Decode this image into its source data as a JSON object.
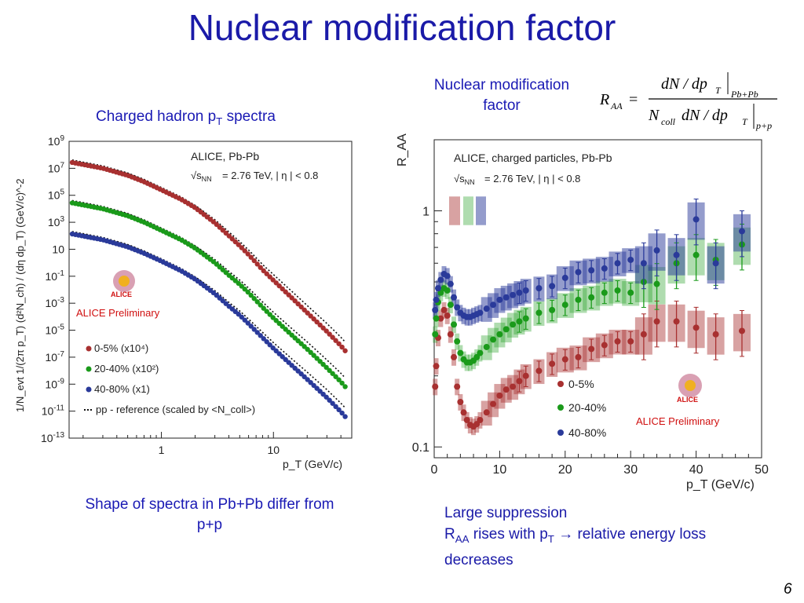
{
  "slide": {
    "title": "Nuclear modification factor",
    "left_heading": "Charged hadron p",
    "left_heading_sub": "T",
    "left_heading_tail": " spectra",
    "right_heading_line1": "Nuclear modification",
    "right_heading_line2": "factor",
    "formula": {
      "lhs": "R",
      "lhs_sub": "AA",
      "numerator": "dN / dp",
      "num_sub": "T",
      "num_eval": "Pb+Pb",
      "den_pre": "N",
      "den_pre_sub": "coll",
      "den_main": " dN / dp",
      "den_sub": "T",
      "den_eval": "p+p"
    },
    "left_caption": "Shape of spectra in Pb+Pb differ from p+p",
    "right_caption": {
      "line1": "Large suppression",
      "line2_a": "R",
      "line2_sub": "AA",
      "line2_b": " rises with p",
      "line2_sub2": "T",
      "line2_arrow": "→",
      "line2_c": " relative energy loss",
      "line3": "decreases"
    },
    "page_number": "6"
  },
  "chart_data": [
    {
      "type": "scatter",
      "x_scale": "log",
      "y_scale": "log",
      "xlim": [
        0.15,
        50
      ],
      "ylim": [
        1e-13,
        1000000000.0
      ],
      "xlabel": "p_T (GeV/c)",
      "ylabel": "1/N_evt 1/(2π p_T) (d²N_ch) / (dη dp_T) (GeV/c)^-2",
      "x_ticks": [
        "1",
        "10"
      ],
      "y_ticks": [
        "10^9",
        "10^7",
        "10^5",
        "10^3",
        "10",
        "10^-1",
        "10^-3",
        "10^-5",
        "10^-7",
        "10^-9",
        "10^-11",
        "10^-13"
      ],
      "header": "ALICE, Pb-Pb",
      "energy_text": "= 2.76 TeV, | η | < 0.8",
      "energy_prefix": "√s",
      "energy_prefix_sub": "NN",
      "preliminary": "ALICE Preliminary",
      "logo": "ALICE",
      "series": [
        {
          "name": "0-5%  (x10⁴)",
          "color": "#a83030",
          "x": [
            0.15,
            0.3,
            0.5,
            0.7,
            1,
            1.5,
            2,
            3,
            4,
            5,
            6,
            8,
            10,
            15,
            20,
            30,
            40,
            50
          ],
          "y": [
            30000000.0,
            10000000.0,
            3000000.0,
            1000000.0,
            250000.0,
            50000.0,
            12000.0,
            900.0,
            100.0,
            18.0,
            4,
            0.3,
            0.05,
            0.002,
            0.0002,
            8e-06,
            7e-07,
            8e-08
          ]
        },
        {
          "name": "20-40% (x10²)",
          "color": "#1a9a1a",
          "x": [
            0.15,
            0.3,
            0.5,
            0.7,
            1,
            1.5,
            2,
            3,
            4,
            5,
            6,
            8,
            10,
            15,
            20,
            30,
            40,
            50
          ],
          "y": [
            30000.0,
            10000.0,
            3000.0,
            1000.0,
            250.0,
            50.0,
            12.0,
            1,
            0.12,
            0.025,
            0.006,
            0.0005,
            8e-05,
            3.5e-06,
            4e-07,
            1.6e-08,
            1.5e-09,
            1.8e-10
          ]
        },
        {
          "name": "40-80% (x1)",
          "color": "#2a3a9a",
          "x": [
            0.15,
            0.3,
            0.5,
            0.7,
            1,
            1.5,
            2,
            3,
            4,
            5,
            6,
            8,
            10,
            15,
            20,
            30,
            40,
            50
          ],
          "y": [
            150.0,
            50.0,
            15.0,
            5,
            1.3,
            0.25,
            0.06,
            0.005,
            0.0006,
            0.00013,
            3e-05,
            2.8e-06,
            4.5e-07,
            2e-08,
            2.3e-09,
            1e-10,
            9e-12,
            1.1e-12
          ]
        }
      ],
      "reference": {
        "name": "pp - reference (scaled by <N_coll>)",
        "style": "dotted"
      }
    },
    {
      "type": "scatter",
      "x_scale": "linear",
      "y_scale": "log",
      "xlim": [
        0,
        50
      ],
      "ylim": [
        0.09,
        2
      ],
      "xlabel": "p_T (GeV/c)",
      "ylabel": "R_AA",
      "x_ticks": [
        "0",
        "10",
        "20",
        "30",
        "40",
        "50"
      ],
      "y_ticks": [
        "1",
        "0.1"
      ],
      "header": "ALICE, charged particles, Pb-Pb",
      "energy_text": "= 2.76 TeV, | η | < 0.8",
      "energy_prefix": "√s",
      "energy_prefix_sub": "NN",
      "preliminary": "ALICE Preliminary",
      "logo": "ALICE",
      "series": [
        {
          "name": "0-5%",
          "color": "#a83030",
          "x": [
            0.15,
            0.3,
            0.6,
            1,
            1.5,
            2,
            2.5,
            3,
            3.5,
            4,
            4.5,
            5,
            5.5,
            6,
            6.5,
            7,
            8,
            9,
            10,
            11,
            12,
            13,
            14,
            16,
            18,
            20,
            22,
            24,
            26,
            28,
            30,
            32,
            34,
            37,
            40,
            43,
            47
          ],
          "y": [
            0.18,
            0.22,
            0.29,
            0.35,
            0.38,
            0.36,
            0.3,
            0.24,
            0.18,
            0.155,
            0.14,
            0.13,
            0.124,
            0.122,
            0.125,
            0.13,
            0.14,
            0.152,
            0.165,
            0.175,
            0.18,
            0.19,
            0.2,
            0.21,
            0.225,
            0.235,
            0.24,
            0.26,
            0.27,
            0.28,
            0.28,
            0.3,
            0.34,
            0.34,
            0.32,
            0.3,
            0.31
          ]
        },
        {
          "name": "20-40%",
          "color": "#1a9a1a",
          "x": [
            0.15,
            0.3,
            0.6,
            1,
            1.5,
            2,
            2.5,
            3,
            3.5,
            4,
            4.5,
            5,
            5.5,
            6,
            6.5,
            7,
            8,
            9,
            10,
            11,
            12,
            13,
            14,
            16,
            18,
            20,
            22,
            24,
            26,
            28,
            30,
            32,
            34,
            37,
            40,
            43,
            47
          ],
          "y": [
            0.3,
            0.35,
            0.41,
            0.45,
            0.47,
            0.46,
            0.4,
            0.33,
            0.28,
            0.25,
            0.235,
            0.228,
            0.228,
            0.232,
            0.24,
            0.25,
            0.265,
            0.285,
            0.3,
            0.315,
            0.33,
            0.34,
            0.35,
            0.37,
            0.38,
            0.4,
            0.42,
            0.43,
            0.45,
            0.46,
            0.45,
            0.5,
            0.49,
            0.6,
            0.65,
            0.62,
            0.72
          ]
        },
        {
          "name": "40-80%",
          "color": "#2a3a9a",
          "x": [
            0.15,
            0.3,
            0.6,
            1,
            1.5,
            2,
            2.5,
            3,
            3.5,
            4,
            4.5,
            5,
            5.5,
            6,
            6.5,
            7,
            8,
            9,
            10,
            11,
            12,
            13,
            14,
            16,
            18,
            20,
            22,
            24,
            26,
            28,
            30,
            32,
            34,
            37,
            40,
            43,
            47
          ],
          "y": [
            0.38,
            0.42,
            0.47,
            0.51,
            0.54,
            0.53,
            0.49,
            0.43,
            0.39,
            0.37,
            0.36,
            0.355,
            0.355,
            0.36,
            0.365,
            0.37,
            0.385,
            0.4,
            0.42,
            0.43,
            0.44,
            0.45,
            0.46,
            0.47,
            0.48,
            0.52,
            0.55,
            0.56,
            0.57,
            0.6,
            0.62,
            0.6,
            0.68,
            0.65,
            0.92,
            0.6,
            0.82
          ]
        }
      ]
    }
  ]
}
